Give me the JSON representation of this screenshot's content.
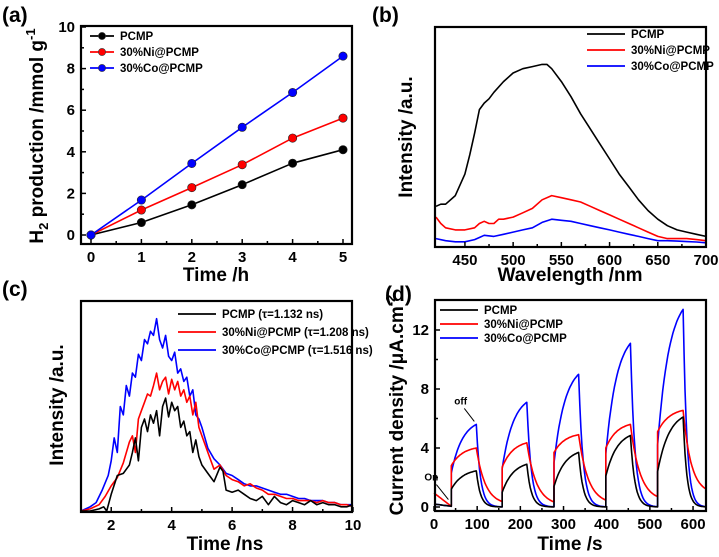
{
  "colors": {
    "PCMP": "#000000",
    "Ni": "#ff0000",
    "Co": "#0000ff"
  },
  "chart_data": [
    {
      "panel": "(a)",
      "type": "line",
      "xlabel": "Time /h",
      "ylabel_main": "H",
      "ylabel_sub": "2",
      "ylabel_rest": " production /mmol g",
      "ylabel_sup": "-1",
      "xlim": [
        -0.3,
        5.2
      ],
      "ylim": [
        -0.4,
        10
      ],
      "xticks": [
        0,
        1,
        2,
        3,
        4,
        5
      ],
      "yticks": [
        0,
        2,
        4,
        6,
        8,
        10
      ],
      "markers": true,
      "legend": "top-left",
      "x": [
        0,
        1,
        2,
        3,
        4,
        5
      ],
      "series": [
        {
          "name": "PCMP",
          "color_key": "PCMP",
          "values": [
            0,
            0.6,
            1.45,
            2.42,
            3.45,
            4.1
          ]
        },
        {
          "name": "30%Ni@PCMP",
          "color_key": "Ni",
          "values": [
            0,
            1.2,
            2.28,
            3.38,
            4.66,
            5.62
          ]
        },
        {
          "name": "30%Co@PCMP",
          "color_key": "Co",
          "values": [
            0,
            1.68,
            3.44,
            5.18,
            6.85,
            8.6
          ]
        }
      ]
    },
    {
      "panel": "(b)",
      "type": "line",
      "xlabel": "Wavelength /nm",
      "ylabel": "Intensity /a.u.",
      "xlim": [
        420,
        700
      ],
      "ylim": [
        0,
        100
      ],
      "xticks": [
        450,
        500,
        550,
        600,
        650,
        700
      ],
      "yticks": [],
      "legend": "top-right",
      "series": [
        {
          "name": "PCMP",
          "color_key": "PCMP",
          "x": [
            420,
            425,
            430,
            440,
            450,
            455,
            460,
            465,
            470,
            475,
            480,
            490,
            500,
            510,
            520,
            530,
            535,
            540,
            550,
            560,
            570,
            580,
            590,
            600,
            610,
            620,
            630,
            640,
            650,
            660,
            670,
            680,
            690,
            700
          ],
          "y": [
            18,
            19,
            19,
            23,
            33,
            42,
            52,
            63,
            66,
            68,
            71,
            76,
            80,
            82,
            83,
            84,
            84,
            82,
            76,
            69,
            61,
            54,
            47,
            40,
            33,
            27,
            21,
            16,
            12,
            9,
            7,
            6,
            5,
            4
          ]
        },
        {
          "name": "30%Ni@PCMP",
          "color_key": "Ni",
          "x": [
            420,
            425,
            430,
            440,
            450,
            460,
            465,
            470,
            475,
            480,
            485,
            490,
            500,
            510,
            520,
            530,
            540,
            550,
            560,
            570,
            580,
            590,
            600,
            610,
            620,
            630,
            640,
            650,
            660,
            670,
            680,
            690,
            700
          ],
          "y": [
            13,
            10,
            8,
            7,
            7,
            8,
            10,
            11,
            10,
            10,
            12,
            12,
            13,
            15,
            17,
            21,
            23,
            22,
            21,
            20,
            18,
            16,
            14,
            12,
            10,
            8,
            6,
            4,
            3,
            3,
            3,
            2.5,
            2
          ]
        },
        {
          "name": "30%Co@PCMP",
          "color_key": "Co",
          "x": [
            420,
            430,
            440,
            450,
            460,
            465,
            470,
            480,
            490,
            500,
            510,
            520,
            530,
            540,
            550,
            560,
            570,
            580,
            590,
            600,
            610,
            620,
            630,
            640,
            650,
            660,
            670,
            680,
            690,
            700
          ],
          "y": [
            3,
            2,
            1.5,
            1.5,
            2.5,
            3.5,
            4.5,
            4,
            5,
            6,
            7,
            8,
            10.5,
            12,
            11.5,
            11,
            10,
            9,
            8,
            7,
            6,
            5,
            4,
            3,
            2,
            2,
            1.8,
            1.6,
            1.4,
            1
          ]
        }
      ]
    },
    {
      "panel": "(c)",
      "type": "line",
      "xlabel": "Time /ns",
      "ylabel": "Intensity /a.u.",
      "xlim": [
        1,
        10
      ],
      "ylim": [
        0,
        100
      ],
      "xticks": [
        2,
        4,
        6,
        8,
        10
      ],
      "yticks": [],
      "legend": "top-right",
      "series": [
        {
          "name": "PCMP (τ=1.132 ns)",
          "color_key": "PCMP",
          "x": [
            1.0,
            1.3,
            1.6,
            1.75,
            1.85,
            2.0,
            2.2,
            2.4,
            2.6,
            2.7,
            2.8,
            2.9,
            3.0,
            3.1,
            3.2,
            3.3,
            3.4,
            3.5,
            3.6,
            3.7,
            3.8,
            3.9,
            4.0,
            4.1,
            4.2,
            4.3,
            4.4,
            4.5,
            4.6,
            4.7,
            4.8,
            4.9,
            5.0,
            5.2,
            5.4,
            5.6,
            5.7,
            5.8,
            6.0,
            6.2,
            6.4,
            6.6,
            6.8,
            7.0,
            7.2,
            7.4,
            7.6,
            7.8,
            8.0,
            8.2,
            8.4,
            8.6,
            8.8,
            9.0,
            9.2,
            9.4,
            9.6,
            9.8,
            10.0
          ],
          "y": [
            0,
            0,
            1,
            2,
            0,
            8,
            17,
            18,
            22,
            28,
            35,
            24,
            40,
            44,
            38,
            46,
            42,
            48,
            36,
            50,
            54,
            45,
            52,
            48,
            50,
            40,
            43,
            36,
            38,
            28,
            34,
            26,
            22,
            18,
            14,
            21,
            19,
            10,
            9,
            10,
            8,
            6,
            5,
            7,
            3,
            7,
            4,
            3,
            5,
            4,
            3,
            5,
            3,
            4,
            3,
            3,
            2,
            2,
            3
          ]
        },
        {
          "name": "30%Ni@PCMP (τ=1.208 ns)",
          "color_key": "Ni",
          "x": [
            1.0,
            1.3,
            1.6,
            1.8,
            2.0,
            2.2,
            2.4,
            2.6,
            2.7,
            2.8,
            2.9,
            3.0,
            3.1,
            3.2,
            3.3,
            3.4,
            3.5,
            3.6,
            3.7,
            3.8,
            3.9,
            4.0,
            4.1,
            4.2,
            4.3,
            4.4,
            4.5,
            4.6,
            4.7,
            4.8,
            4.9,
            5.0,
            5.2,
            5.4,
            5.6,
            5.8,
            6.0,
            6.2,
            6.4,
            6.6,
            6.8,
            7.0,
            7.2,
            7.4,
            7.6,
            7.8,
            8.0,
            8.2,
            8.4,
            8.6,
            8.8,
            9.0,
            9.2,
            9.4,
            9.6,
            9.8,
            10.0
          ],
          "y": [
            0,
            1,
            3,
            7,
            12,
            16,
            23,
            33,
            36,
            28,
            44,
            48,
            52,
            56,
            55,
            60,
            66,
            58,
            62,
            64,
            56,
            63,
            58,
            62,
            55,
            58,
            52,
            55,
            46,
            52,
            40,
            36,
            28,
            20,
            22,
            17,
            15,
            14,
            12,
            13,
            11,
            10,
            8,
            8,
            7,
            6,
            6,
            5,
            5,
            5,
            4,
            5,
            4,
            4,
            3,
            3,
            2
          ]
        },
        {
          "name": "30%Co@PCMP (τ=1.516 ns)",
          "color_key": "Co",
          "x": [
            1.0,
            1.3,
            1.5,
            1.7,
            1.9,
            2.0,
            2.1,
            2.2,
            2.3,
            2.4,
            2.5,
            2.6,
            2.7,
            2.8,
            2.9,
            3.0,
            3.1,
            3.2,
            3.3,
            3.4,
            3.5,
            3.6,
            3.7,
            3.8,
            3.9,
            4.0,
            4.1,
            4.2,
            4.3,
            4.4,
            4.5,
            4.6,
            4.7,
            4.8,
            4.9,
            5.0,
            5.2,
            5.4,
            5.6,
            5.8,
            6.0,
            6.2,
            6.4,
            6.6,
            6.8,
            7.0,
            7.2,
            7.4,
            7.6,
            7.8,
            8.0,
            8.2,
            8.4,
            8.6,
            8.8,
            9.0,
            9.2,
            9.4,
            9.6,
            9.8,
            10.0
          ],
          "y": [
            0,
            2,
            4,
            10,
            17,
            24,
            35,
            28,
            50,
            46,
            60,
            55,
            66,
            64,
            75,
            72,
            82,
            80,
            86,
            84,
            92,
            82,
            78,
            84,
            74,
            72,
            76,
            66,
            68,
            62,
            64,
            55,
            58,
            46,
            44,
            40,
            30,
            25,
            22,
            18,
            17,
            15,
            13,
            12,
            12,
            11,
            10,
            9,
            8,
            8,
            7,
            6,
            6,
            5,
            5,
            5,
            4,
            4,
            3,
            3,
            3
          ]
        }
      ]
    },
    {
      "panel": "(d)",
      "type": "line",
      "xlabel": "Time /s",
      "ylabel_main": "Current density /μA.cm",
      "ylabel_sup": "-2",
      "xlim": [
        0,
        630
      ],
      "ylim": [
        -0.3,
        14
      ],
      "xticks": [
        0,
        100,
        200,
        300,
        400,
        500,
        600
      ],
      "yticks": [
        0,
        4,
        8,
        12
      ],
      "legend": "top-left",
      "annotations": [
        {
          "text": "On",
          "x": 38,
          "y": 0.3
        },
        {
          "text": "off",
          "x": 98,
          "y": 5.6
        }
      ],
      "cycles": [
        {
          "on": 40,
          "off": 98
        },
        {
          "on": 158,
          "off": 215
        },
        {
          "on": 278,
          "off": 335
        },
        {
          "on": 398,
          "off": 455
        },
        {
          "on": 518,
          "off": 577
        }
      ],
      "series": [
        {
          "name": "PCMP",
          "color_key": "PCMP",
          "start_value": 0.2,
          "on_values": [
            1.2,
            1.0,
            1.4,
            2.1,
            2.4
          ],
          "peak_values": [
            2.45,
            2.9,
            3.7,
            4.85,
            6.1
          ],
          "dark_floor": [
            0.0,
            0.0,
            0.0,
            0.0,
            0.0
          ]
        },
        {
          "name": "30%Ni@PCMP",
          "color_key": "Ni",
          "start_value": 0.95,
          "on_values": [
            2.8,
            2.7,
            3.7,
            4.0,
            5.1
          ],
          "peak_values": [
            4.0,
            4.35,
            4.9,
            5.6,
            6.55
          ],
          "dark_floor": [
            0.15,
            0.1,
            0.2,
            0.4,
            0.9
          ]
        },
        {
          "name": "30%Co@PCMP",
          "color_key": "Co",
          "start_value": 0.2,
          "on_values": [
            2.3,
            2.6,
            3.0,
            3.6,
            4.2
          ],
          "peak_values": [
            5.6,
            7.1,
            9.0,
            11.1,
            13.4
          ],
          "dark_floor": [
            0.0,
            0.0,
            0.0,
            0.0,
            0.0
          ]
        }
      ]
    }
  ]
}
